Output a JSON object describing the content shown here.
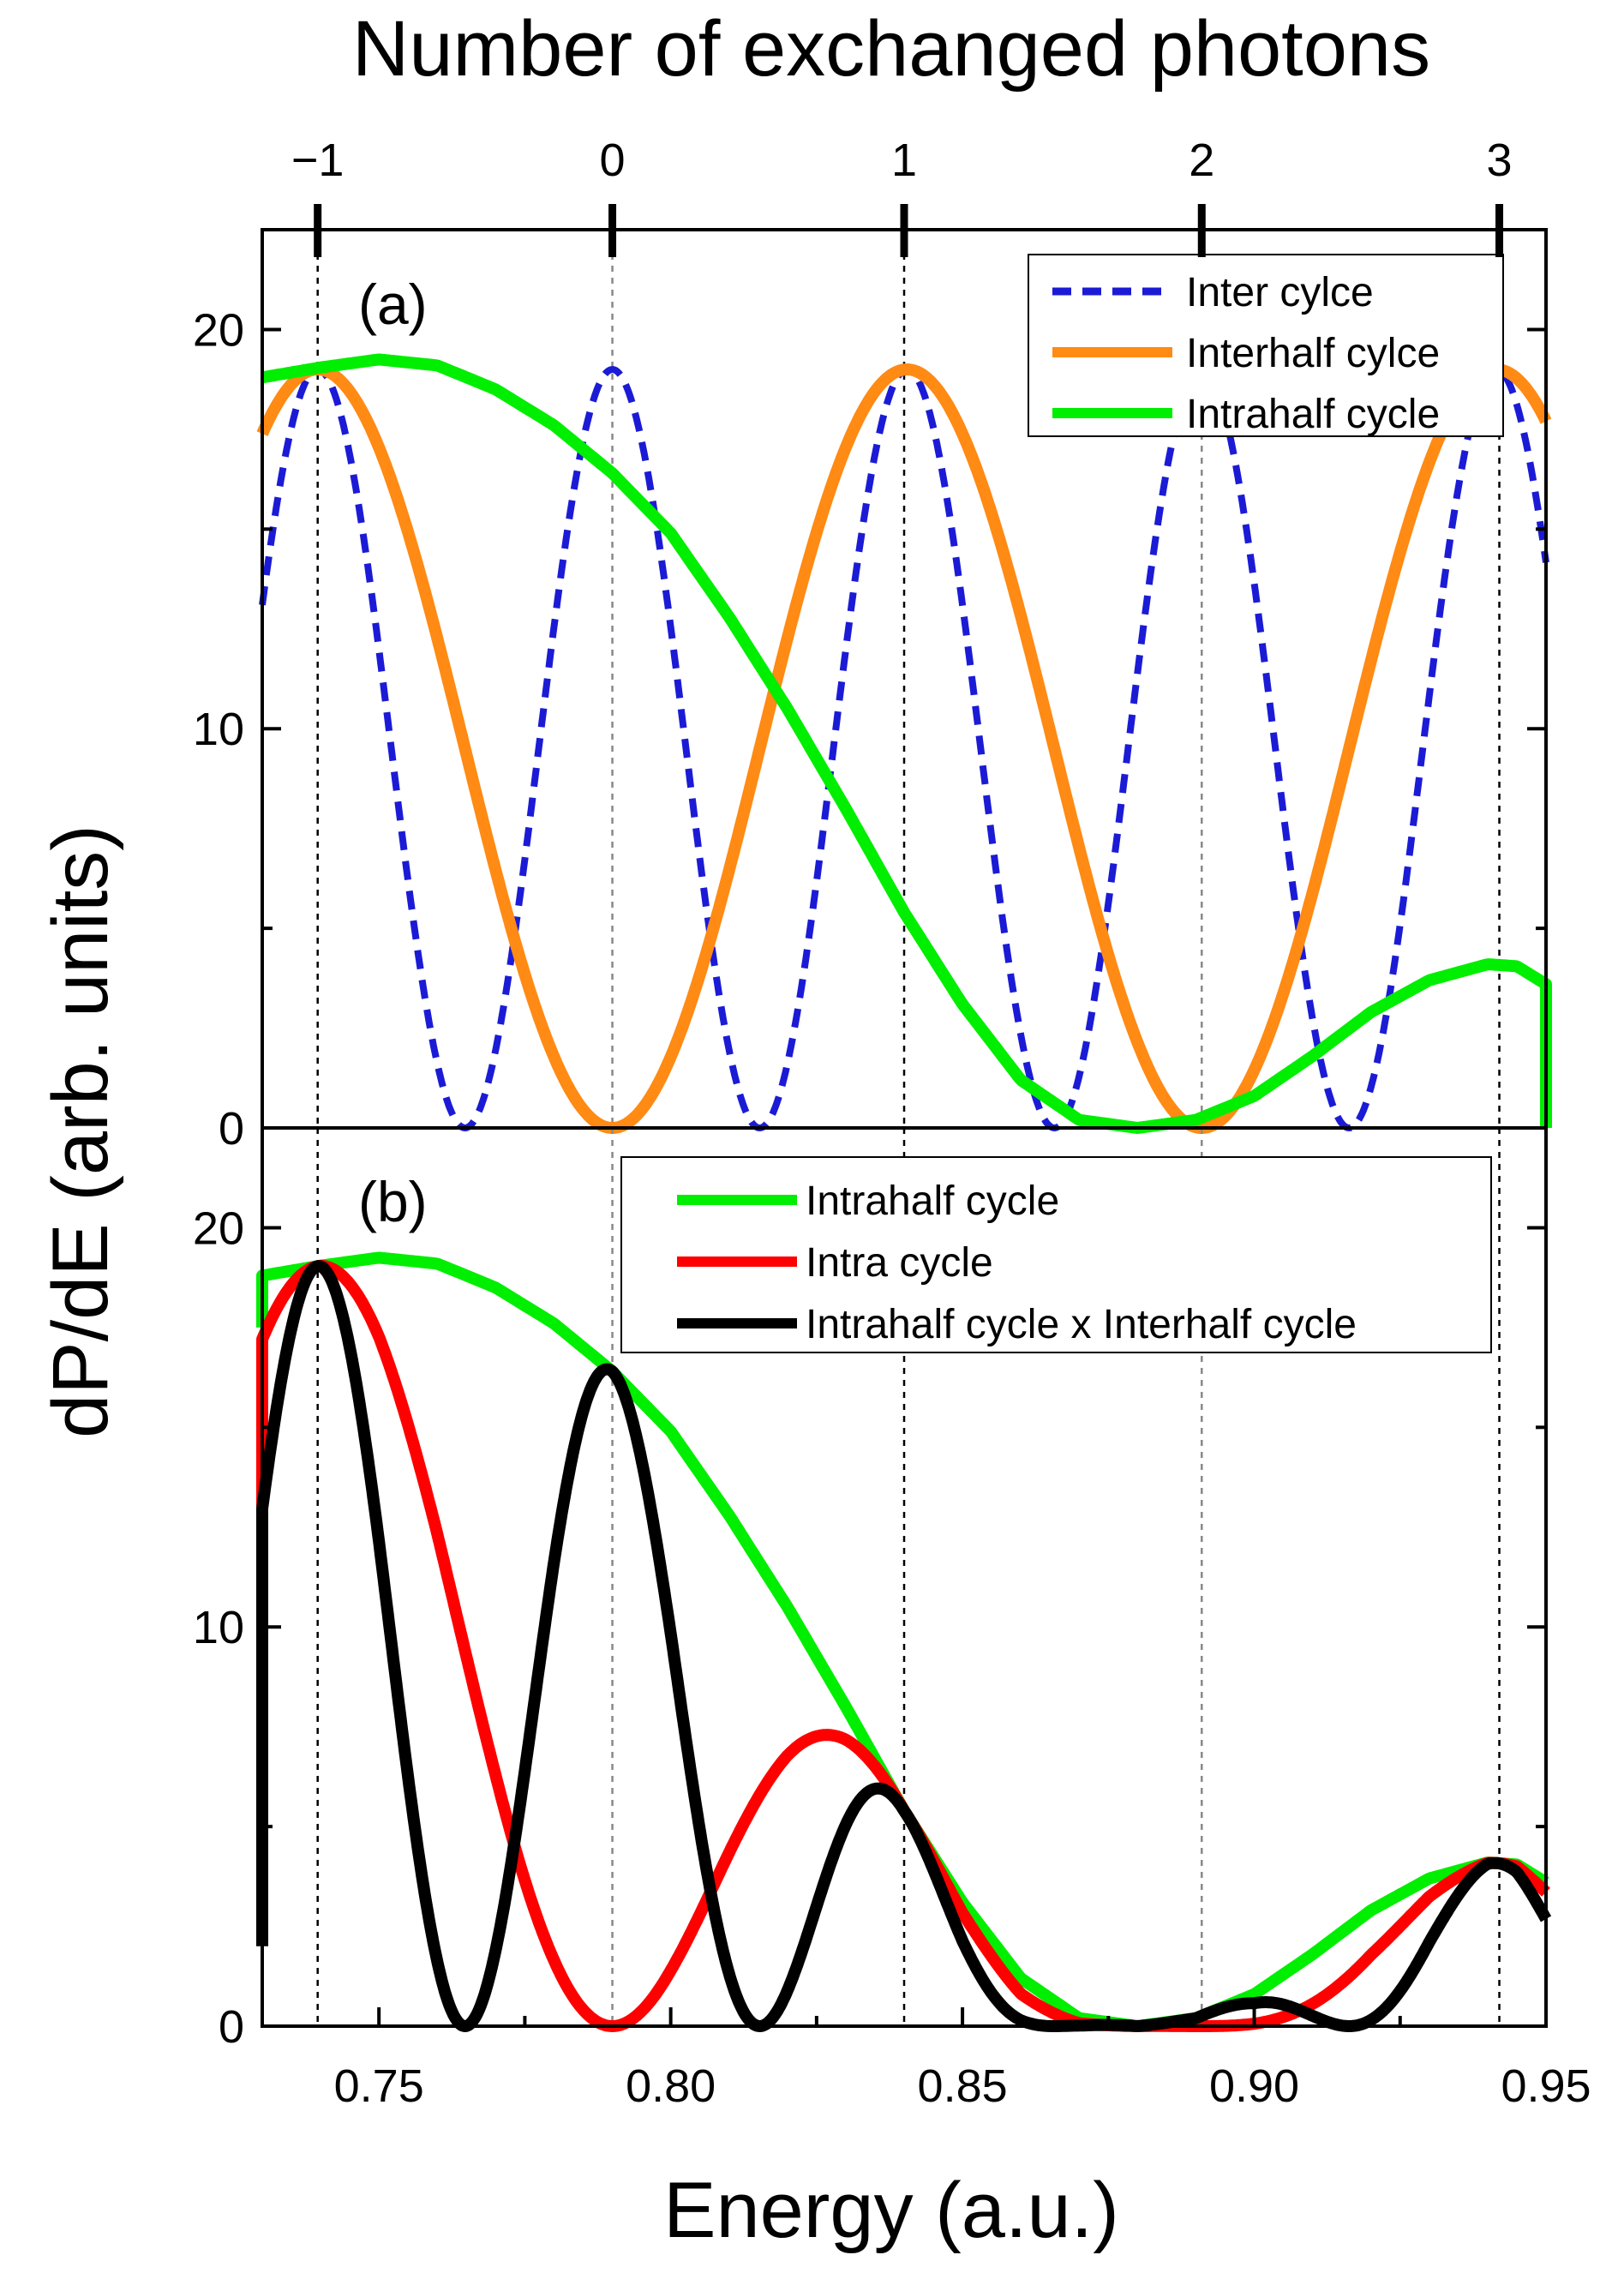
{
  "chart_data": {
    "type": "line",
    "top_axis": {
      "label": "Number of exchanged photons",
      "tick_labels": [
        "−1",
        "0",
        "1",
        "2",
        "3"
      ],
      "tick_energies": [
        0.7395,
        0.79,
        0.84,
        0.891,
        0.942
      ]
    },
    "x": {
      "label": "Energy (a.u.)",
      "range": [
        0.73,
        0.95
      ],
      "ticks": [
        0.75,
        0.8,
        0.85,
        0.9,
        0.95
      ],
      "tick_labels": [
        "0.75",
        "0.80",
        "0.85",
        "0.90",
        "0.95"
      ]
    },
    "y": {
      "label": "dP/dE (arb. units)",
      "range": [
        0,
        22.5
      ],
      "ticks": [
        0,
        10,
        20
      ],
      "tick_labels": [
        "0",
        "10",
        "20"
      ]
    },
    "panels": [
      {
        "label": "(a)",
        "legend_position": "top-right",
        "series": [
          {
            "name": "Inter cylce",
            "color": "#1b1bd6",
            "dashed": true,
            "model": "inter_cycle",
            "amp": 19.0,
            "omega": 0.0505,
            "center": 0.7395
          },
          {
            "name": "Interhalf cylce",
            "color": "#ff8a14",
            "dashed": false,
            "model": "interhalf_cycle",
            "amp": 19.0,
            "omega": 0.0505,
            "center": 0.7395
          },
          {
            "name": "Intrahalf cycle",
            "color": "#00ee00",
            "dashed": false,
            "model": "intrahalf_cycle",
            "points": [
              [
                0.73,
                18.8
              ],
              [
                0.74,
                19.05
              ],
              [
                0.75,
                19.25
              ],
              [
                0.76,
                19.1
              ],
              [
                0.77,
                18.5
              ],
              [
                0.78,
                17.6
              ],
              [
                0.79,
                16.4
              ],
              [
                0.8,
                14.9
              ],
              [
                0.81,
                12.8
              ],
              [
                0.82,
                10.5
              ],
              [
                0.83,
                8.0
              ],
              [
                0.84,
                5.4
              ],
              [
                0.85,
                3.1
              ],
              [
                0.86,
                1.2
              ],
              [
                0.87,
                0.2
              ],
              [
                0.88,
                0.0
              ],
              [
                0.89,
                0.2
              ],
              [
                0.9,
                0.8
              ],
              [
                0.91,
                1.8
              ],
              [
                0.92,
                2.9
              ],
              [
                0.93,
                3.7
              ],
              [
                0.94,
                4.1
              ],
              [
                0.945,
                4.05
              ],
              [
                0.95,
                3.6
              ],
              [
                0.95,
                0.0
              ]
            ]
          }
        ]
      },
      {
        "label": "(b)",
        "legend_position": "top-right",
        "series": [
          {
            "name": "Intrahalf cycle",
            "color": "#00ee00",
            "dashed": false,
            "model": "intrahalf_cycle",
            "points": [
              [
                0.73,
                17.5
              ],
              [
                0.73,
                18.8
              ],
              [
                0.74,
                19.05
              ],
              [
                0.75,
                19.25
              ],
              [
                0.76,
                19.1
              ],
              [
                0.77,
                18.5
              ],
              [
                0.78,
                17.6
              ],
              [
                0.79,
                16.4
              ],
              [
                0.8,
                14.9
              ],
              [
                0.81,
                12.8
              ],
              [
                0.82,
                10.5
              ],
              [
                0.83,
                8.0
              ],
              [
                0.84,
                5.4
              ],
              [
                0.85,
                3.1
              ],
              [
                0.86,
                1.2
              ],
              [
                0.87,
                0.2
              ],
              [
                0.88,
                0.0
              ],
              [
                0.89,
                0.2
              ],
              [
                0.9,
                0.8
              ],
              [
                0.91,
                1.8
              ],
              [
                0.92,
                2.9
              ],
              [
                0.93,
                3.7
              ],
              [
                0.94,
                4.1
              ],
              [
                0.945,
                4.05
              ],
              [
                0.95,
                3.6
              ]
            ]
          },
          {
            "name": "Intra cycle",
            "color": "#ff0000",
            "dashed": false,
            "model": "intrahalf_times_interhalf"
          },
          {
            "name": "Intrahalf cycle x Interhalf cycle",
            "color": "#000000",
            "dashed": false,
            "model": "intrahalf_times_inter"
          }
        ]
      }
    ]
  }
}
